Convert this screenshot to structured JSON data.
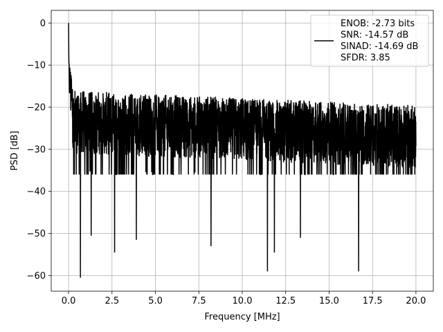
{
  "chart_data": {
    "type": "line",
    "title": "",
    "xlabel": "Frequency [MHz]",
    "ylabel": "PSD [dB]",
    "xlim": [
      -1.0,
      21.0
    ],
    "ylim": [
      -63.7,
      3.0
    ],
    "x_ticks": [
      0.0,
      2.5,
      5.0,
      7.5,
      10.0,
      12.5,
      15.0,
      17.5,
      20.0
    ],
    "x_tick_labels": [
      "0.0",
      "2.5",
      "5.0",
      "7.5",
      "10.0",
      "12.5",
      "15.0",
      "17.5",
      "20.0"
    ],
    "y_ticks": [
      0,
      -10,
      -20,
      -30,
      -40,
      -50,
      -60
    ],
    "y_tick_labels": [
      "0",
      "−10",
      "−20",
      "−30",
      "−40",
      "−50",
      "−60"
    ],
    "grid": true,
    "legend_position": "top-right",
    "series": [
      {
        "name": "ENOB: -2.73 bits\nSNR: -14.57 dB\nSINAD: -14.69 dB\nSFDR: 3.85",
        "color": "#000000",
        "x_range": [
          0.0,
          20.0
        ],
        "peak": {
          "x": 0.0,
          "y": 0.0
        },
        "dips": [
          {
            "x": 0.68,
            "y": -60.5
          },
          {
            "x": 1.3,
            "y": -50.5
          },
          {
            "x": 2.65,
            "y": -54.5
          },
          {
            "x": 3.9,
            "y": -51.5
          },
          {
            "x": 8.2,
            "y": -53.0
          },
          {
            "x": 11.45,
            "y": -59.0
          },
          {
            "x": 11.85,
            "y": -54.5
          },
          {
            "x": 13.35,
            "y": -51.0
          },
          {
            "x": 16.7,
            "y": -59.0
          }
        ],
        "typical_range": [
          -35,
          -17
        ]
      }
    ]
  },
  "legend": {
    "lines": [
      "ENOB: -2.73 bits",
      "SNR: -14.57 dB",
      "SINAD: -14.69 dB",
      "SFDR: 3.85"
    ]
  }
}
